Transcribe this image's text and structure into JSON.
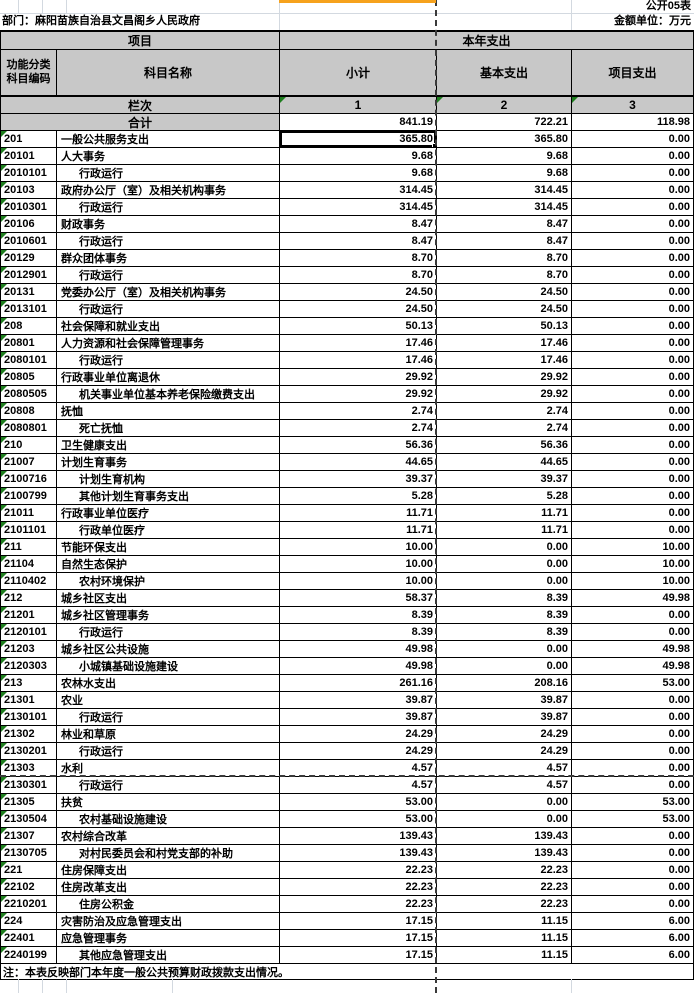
{
  "meta": {
    "sheet_label": "公开05表",
    "department": "部门：麻阳苗族自治县文昌阁乡人民政府",
    "unit_label": "金额单位：万元"
  },
  "header": {
    "project": "项目",
    "current_year": "本年支出",
    "code_column": "功能分类\n科目编码",
    "subject_name": "科目名称",
    "subtotal": "小计",
    "basic": "基本支出",
    "project_exp": "项目支出",
    "lanci_label": "栏次",
    "column_indexes": [
      "1",
      "2",
      "3"
    ],
    "total_label": "合计",
    "total": {
      "subtotal": "841.19",
      "basic": "722.21",
      "project": "118.98"
    }
  },
  "table": {
    "selected": {
      "row": 0,
      "col": "subtotal"
    },
    "rows": [
      {
        "code": "201",
        "name": "一般公共服务支出",
        "indent": 0,
        "subtotal": "365.80",
        "basic": "365.80",
        "project": "0.00"
      },
      {
        "code": "20101",
        "name": "人大事务",
        "indent": 0,
        "subtotal": "9.68",
        "basic": "9.68",
        "project": "0.00"
      },
      {
        "code": "2010101",
        "name": "行政运行",
        "indent": 1,
        "subtotal": "9.68",
        "basic": "9.68",
        "project": "0.00"
      },
      {
        "code": "20103",
        "name": "政府办公厅（室）及相关机构事务",
        "indent": 0,
        "subtotal": "314.45",
        "basic": "314.45",
        "project": "0.00"
      },
      {
        "code": "2010301",
        "name": "行政运行",
        "indent": 1,
        "subtotal": "314.45",
        "basic": "314.45",
        "project": "0.00"
      },
      {
        "code": "20106",
        "name": "财政事务",
        "indent": 0,
        "subtotal": "8.47",
        "basic": "8.47",
        "project": "0.00"
      },
      {
        "code": "2010601",
        "name": "行政运行",
        "indent": 1,
        "subtotal": "8.47",
        "basic": "8.47",
        "project": "0.00"
      },
      {
        "code": "20129",
        "name": "群众团体事务",
        "indent": 0,
        "subtotal": "8.70",
        "basic": "8.70",
        "project": "0.00"
      },
      {
        "code": "2012901",
        "name": "行政运行",
        "indent": 1,
        "subtotal": "8.70",
        "basic": "8.70",
        "project": "0.00"
      },
      {
        "code": "20131",
        "name": "党委办公厅（室）及相关机构事务",
        "indent": 0,
        "subtotal": "24.50",
        "basic": "24.50",
        "project": "0.00"
      },
      {
        "code": "2013101",
        "name": "行政运行",
        "indent": 1,
        "subtotal": "24.50",
        "basic": "24.50",
        "project": "0.00"
      },
      {
        "code": "208",
        "name": "社会保障和就业支出",
        "indent": 0,
        "subtotal": "50.13",
        "basic": "50.13",
        "project": "0.00"
      },
      {
        "code": "20801",
        "name": "人力资源和社会保障管理事务",
        "indent": 0,
        "subtotal": "17.46",
        "basic": "17.46",
        "project": "0.00"
      },
      {
        "code": "2080101",
        "name": "行政运行",
        "indent": 1,
        "subtotal": "17.46",
        "basic": "17.46",
        "project": "0.00"
      },
      {
        "code": "20805",
        "name": "行政事业单位离退休",
        "indent": 0,
        "subtotal": "29.92",
        "basic": "29.92",
        "project": "0.00"
      },
      {
        "code": "2080505",
        "name": "机关事业单位基本养老保险缴费支出",
        "indent": 1,
        "subtotal": "29.92",
        "basic": "29.92",
        "project": "0.00"
      },
      {
        "code": "20808",
        "name": "抚恤",
        "indent": 0,
        "subtotal": "2.74",
        "basic": "2.74",
        "project": "0.00"
      },
      {
        "code": "2080801",
        "name": "死亡抚恤",
        "indent": 1,
        "subtotal": "2.74",
        "basic": "2.74",
        "project": "0.00"
      },
      {
        "code": "210",
        "name": "卫生健康支出",
        "indent": 0,
        "subtotal": "56.36",
        "basic": "56.36",
        "project": "0.00"
      },
      {
        "code": "21007",
        "name": "计划生育事务",
        "indent": 0,
        "subtotal": "44.65",
        "basic": "44.65",
        "project": "0.00"
      },
      {
        "code": "2100716",
        "name": "计划生育机构",
        "indent": 1,
        "subtotal": "39.37",
        "basic": "39.37",
        "project": "0.00"
      },
      {
        "code": "2100799",
        "name": "其他计划生育事务支出",
        "indent": 1,
        "subtotal": "5.28",
        "basic": "5.28",
        "project": "0.00"
      },
      {
        "code": "21011",
        "name": "行政事业单位医疗",
        "indent": 0,
        "subtotal": "11.71",
        "basic": "11.71",
        "project": "0.00"
      },
      {
        "code": "2101101",
        "name": "行政单位医疗",
        "indent": 1,
        "subtotal": "11.71",
        "basic": "11.71",
        "project": "0.00"
      },
      {
        "code": "211",
        "name": "节能环保支出",
        "indent": 0,
        "subtotal": "10.00",
        "basic": "0.00",
        "project": "10.00"
      },
      {
        "code": "21104",
        "name": "自然生态保护",
        "indent": 0,
        "subtotal": "10.00",
        "basic": "0.00",
        "project": "10.00"
      },
      {
        "code": "2110402",
        "name": "农村环境保护",
        "indent": 1,
        "subtotal": "10.00",
        "basic": "0.00",
        "project": "10.00"
      },
      {
        "code": "212",
        "name": "城乡社区支出",
        "indent": 0,
        "subtotal": "58.37",
        "basic": "8.39",
        "project": "49.98"
      },
      {
        "code": "21201",
        "name": "城乡社区管理事务",
        "indent": 0,
        "subtotal": "8.39",
        "basic": "8.39",
        "project": "0.00"
      },
      {
        "code": "2120101",
        "name": "行政运行",
        "indent": 1,
        "subtotal": "8.39",
        "basic": "8.39",
        "project": "0.00"
      },
      {
        "code": "21203",
        "name": "城乡社区公共设施",
        "indent": 0,
        "subtotal": "49.98",
        "basic": "0.00",
        "project": "49.98"
      },
      {
        "code": "2120303",
        "name": "小城镇基础设施建设",
        "indent": 1,
        "subtotal": "49.98",
        "basic": "0.00",
        "project": "49.98"
      },
      {
        "code": "213",
        "name": "农林水支出",
        "indent": 0,
        "subtotal": "261.16",
        "basic": "208.16",
        "project": "53.00"
      },
      {
        "code": "21301",
        "name": "农业",
        "indent": 0,
        "subtotal": "39.87",
        "basic": "39.87",
        "project": "0.00"
      },
      {
        "code": "2130101",
        "name": "行政运行",
        "indent": 1,
        "subtotal": "39.87",
        "basic": "39.87",
        "project": "0.00"
      },
      {
        "code": "21302",
        "name": "林业和草原",
        "indent": 0,
        "subtotal": "24.29",
        "basic": "24.29",
        "project": "0.00"
      },
      {
        "code": "2130201",
        "name": "行政运行",
        "indent": 1,
        "subtotal": "24.29",
        "basic": "24.29",
        "project": "0.00"
      },
      {
        "code": "21303",
        "name": "水利",
        "indent": 0,
        "subtotal": "4.57",
        "basic": "4.57",
        "project": "0.00"
      },
      {
        "code": "2130301",
        "name": "行政运行",
        "indent": 1,
        "subtotal": "4.57",
        "basic": "4.57",
        "project": "0.00"
      },
      {
        "code": "21305",
        "name": "扶贫",
        "indent": 0,
        "subtotal": "53.00",
        "basic": "0.00",
        "project": "53.00"
      },
      {
        "code": "2130504",
        "name": "农村基础设施建设",
        "indent": 1,
        "subtotal": "53.00",
        "basic": "0.00",
        "project": "53.00"
      },
      {
        "code": "21307",
        "name": "农村综合改革",
        "indent": 0,
        "subtotal": "139.43",
        "basic": "139.43",
        "project": "0.00"
      },
      {
        "code": "2130705",
        "name": "对村民委员会和村党支部的补助",
        "indent": 1,
        "subtotal": "139.43",
        "basic": "139.43",
        "project": "0.00"
      },
      {
        "code": "221",
        "name": "住房保障支出",
        "indent": 0,
        "subtotal": "22.23",
        "basic": "22.23",
        "project": "0.00"
      },
      {
        "code": "22102",
        "name": "住房改革支出",
        "indent": 0,
        "subtotal": "22.23",
        "basic": "22.23",
        "project": "0.00"
      },
      {
        "code": "2210201",
        "name": "住房公积金",
        "indent": 1,
        "subtotal": "22.23",
        "basic": "22.23",
        "project": "0.00"
      },
      {
        "code": "224",
        "name": "灾害防治及应急管理支出",
        "indent": 0,
        "subtotal": "17.15",
        "basic": "11.15",
        "project": "6.00"
      },
      {
        "code": "22401",
        "name": "应急管理事务",
        "indent": 0,
        "subtotal": "17.15",
        "basic": "11.15",
        "project": "6.00"
      },
      {
        "code": "2240199",
        "name": "其他应急管理支出",
        "indent": 1,
        "subtotal": "17.15",
        "basic": "11.15",
        "project": "6.00"
      }
    ]
  },
  "note": "注：本表反映部门本年度一般公共预算财政拨款支出情况。",
  "colors": {
    "header_bg": "#c8c8c8",
    "selected_column_indicator": "#f6a21d",
    "error_triangle": "#1e7e1e"
  }
}
